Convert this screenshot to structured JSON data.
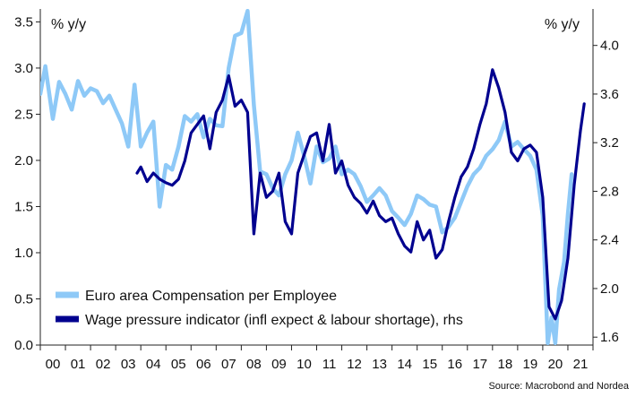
{
  "chart_data": {
    "type": "line",
    "left_unit": "% y/y",
    "right_unit": "% y/y",
    "source": "Source: Macrobond and Nordea",
    "left_axis": {
      "min": 0.0,
      "max": 3.64,
      "ticks": [
        "0.0",
        "0.5",
        "1.0",
        "1.5",
        "2.0",
        "2.5",
        "3.0",
        "3.5"
      ]
    },
    "right_axis": {
      "min": 1.535,
      "max": 4.3,
      "ticks": [
        "1.6",
        "2.0",
        "2.4",
        "2.8",
        "3.2",
        "3.6",
        "4.0"
      ]
    },
    "x_axis": {
      "min": 2000.0,
      "max": 2022.0,
      "tick_labels": [
        "00",
        "01",
        "02",
        "03",
        "04",
        "05",
        "06",
        "07",
        "08",
        "09",
        "10",
        "11",
        "12",
        "13",
        "14",
        "15",
        "16",
        "17",
        "18",
        "19",
        "20",
        "21"
      ]
    },
    "grid": false,
    "legend_position": "bottom-left",
    "colors": {
      "compensation": "#8ec9f7",
      "wage_indicator": "#00008f",
      "axis": "#222222"
    },
    "series": [
      {
        "name": "Euro area Compensation per Employee",
        "axis": "left",
        "points": [
          [
            2000.0,
            2.72
          ],
          [
            2000.2,
            3.02
          ],
          [
            2000.5,
            2.45
          ],
          [
            2000.75,
            2.85
          ],
          [
            2001.0,
            2.72
          ],
          [
            2001.25,
            2.55
          ],
          [
            2001.5,
            2.86
          ],
          [
            2001.75,
            2.7
          ],
          [
            2002.0,
            2.78
          ],
          [
            2002.25,
            2.75
          ],
          [
            2002.5,
            2.62
          ],
          [
            2002.75,
            2.7
          ],
          [
            2003.0,
            2.55
          ],
          [
            2003.25,
            2.4
          ],
          [
            2003.5,
            2.15
          ],
          [
            2003.75,
            2.82
          ],
          [
            2004.0,
            2.15
          ],
          [
            2004.25,
            2.3
          ],
          [
            2004.5,
            2.42
          ],
          [
            2004.75,
            1.5
          ],
          [
            2005.0,
            1.95
          ],
          [
            2005.25,
            1.9
          ],
          [
            2005.5,
            2.15
          ],
          [
            2005.75,
            2.48
          ],
          [
            2006.0,
            2.42
          ],
          [
            2006.25,
            2.5
          ],
          [
            2006.5,
            2.25
          ],
          [
            2006.75,
            2.45
          ],
          [
            2007.0,
            2.38
          ],
          [
            2007.25,
            2.37
          ],
          [
            2007.5,
            3.0
          ],
          [
            2007.75,
            3.35
          ],
          [
            2008.0,
            3.38
          ],
          [
            2008.25,
            3.62
          ],
          [
            2008.5,
            2.6
          ],
          [
            2008.75,
            1.88
          ],
          [
            2009.0,
            1.85
          ],
          [
            2009.25,
            1.7
          ],
          [
            2009.5,
            1.62
          ],
          [
            2009.75,
            1.85
          ],
          [
            2010.0,
            2.0
          ],
          [
            2010.25,
            2.3
          ],
          [
            2010.5,
            2.05
          ],
          [
            2010.75,
            1.75
          ],
          [
            2011.0,
            2.15
          ],
          [
            2011.25,
            1.98
          ],
          [
            2011.5,
            2.02
          ],
          [
            2011.75,
            2.15
          ],
          [
            2012.0,
            1.85
          ],
          [
            2012.25,
            1.9
          ],
          [
            2012.5,
            1.85
          ],
          [
            2012.75,
            1.72
          ],
          [
            2013.0,
            1.55
          ],
          [
            2013.25,
            1.62
          ],
          [
            2013.5,
            1.7
          ],
          [
            2013.75,
            1.62
          ],
          [
            2014.0,
            1.45
          ],
          [
            2014.25,
            1.38
          ],
          [
            2014.5,
            1.3
          ],
          [
            2014.75,
            1.42
          ],
          [
            2015.0,
            1.62
          ],
          [
            2015.25,
            1.58
          ],
          [
            2015.5,
            1.52
          ],
          [
            2015.75,
            1.5
          ],
          [
            2016.0,
            1.22
          ],
          [
            2016.25,
            1.28
          ],
          [
            2016.5,
            1.38
          ],
          [
            2016.75,
            1.55
          ],
          [
            2017.0,
            1.72
          ],
          [
            2017.25,
            1.85
          ],
          [
            2017.5,
            1.92
          ],
          [
            2017.75,
            2.05
          ],
          [
            2018.0,
            2.12
          ],
          [
            2018.25,
            2.22
          ],
          [
            2018.5,
            2.42
          ],
          [
            2018.75,
            2.15
          ],
          [
            2019.0,
            2.2
          ],
          [
            2019.25,
            2.12
          ],
          [
            2019.5,
            2.05
          ],
          [
            2019.75,
            1.9
          ],
          [
            2020.0,
            1.4
          ],
          [
            2020.2,
            0.02
          ],
          [
            2020.35,
            0.3
          ],
          [
            2020.5,
            0.02
          ],
          [
            2020.65,
            0.6
          ],
          [
            2020.85,
            0.9
          ],
          [
            2021.0,
            1.42
          ],
          [
            2021.15,
            1.85
          ]
        ]
      },
      {
        "name": "Wage pressure indicator (infl expect & labour shortage), rhs",
        "axis": "right",
        "points": [
          [
            2003.85,
            2.95
          ],
          [
            2004.0,
            3.0
          ],
          [
            2004.25,
            2.88
          ],
          [
            2004.5,
            2.95
          ],
          [
            2004.75,
            2.9
          ],
          [
            2005.0,
            2.87
          ],
          [
            2005.25,
            2.85
          ],
          [
            2005.5,
            2.9
          ],
          [
            2005.75,
            3.05
          ],
          [
            2006.0,
            3.28
          ],
          [
            2006.25,
            3.35
          ],
          [
            2006.5,
            3.42
          ],
          [
            2006.75,
            3.15
          ],
          [
            2007.0,
            3.45
          ],
          [
            2007.25,
            3.55
          ],
          [
            2007.5,
            3.75
          ],
          [
            2007.75,
            3.5
          ],
          [
            2008.0,
            3.55
          ],
          [
            2008.25,
            3.45
          ],
          [
            2008.5,
            2.45
          ],
          [
            2008.75,
            2.95
          ],
          [
            2009.0,
            2.75
          ],
          [
            2009.25,
            2.8
          ],
          [
            2009.5,
            2.95
          ],
          [
            2009.75,
            2.55
          ],
          [
            2010.0,
            2.45
          ],
          [
            2010.25,
            2.95
          ],
          [
            2010.5,
            3.1
          ],
          [
            2010.75,
            3.25
          ],
          [
            2011.0,
            3.28
          ],
          [
            2011.25,
            3.05
          ],
          [
            2011.5,
            3.35
          ],
          [
            2011.75,
            2.95
          ],
          [
            2012.0,
            3.05
          ],
          [
            2012.25,
            2.85
          ],
          [
            2012.5,
            2.75
          ],
          [
            2012.75,
            2.7
          ],
          [
            2013.0,
            2.62
          ],
          [
            2013.25,
            2.72
          ],
          [
            2013.5,
            2.6
          ],
          [
            2013.75,
            2.55
          ],
          [
            2014.0,
            2.58
          ],
          [
            2014.25,
            2.45
          ],
          [
            2014.5,
            2.35
          ],
          [
            2014.75,
            2.3
          ],
          [
            2015.0,
            2.55
          ],
          [
            2015.25,
            2.4
          ],
          [
            2015.5,
            2.48
          ],
          [
            2015.75,
            2.25
          ],
          [
            2016.0,
            2.32
          ],
          [
            2016.25,
            2.55
          ],
          [
            2016.5,
            2.75
          ],
          [
            2016.75,
            2.92
          ],
          [
            2017.0,
            3.0
          ],
          [
            2017.25,
            3.15
          ],
          [
            2017.5,
            3.35
          ],
          [
            2017.75,
            3.52
          ],
          [
            2018.0,
            3.8
          ],
          [
            2018.25,
            3.65
          ],
          [
            2018.5,
            3.45
          ],
          [
            2018.75,
            3.12
          ],
          [
            2019.0,
            3.05
          ],
          [
            2019.25,
            3.15
          ],
          [
            2019.5,
            3.18
          ],
          [
            2019.75,
            3.12
          ],
          [
            2020.0,
            2.75
          ],
          [
            2020.25,
            1.85
          ],
          [
            2020.5,
            1.75
          ],
          [
            2020.75,
            1.9
          ],
          [
            2021.0,
            2.25
          ],
          [
            2021.25,
            2.85
          ],
          [
            2021.5,
            3.3
          ],
          [
            2021.65,
            3.52
          ]
        ]
      }
    ]
  }
}
